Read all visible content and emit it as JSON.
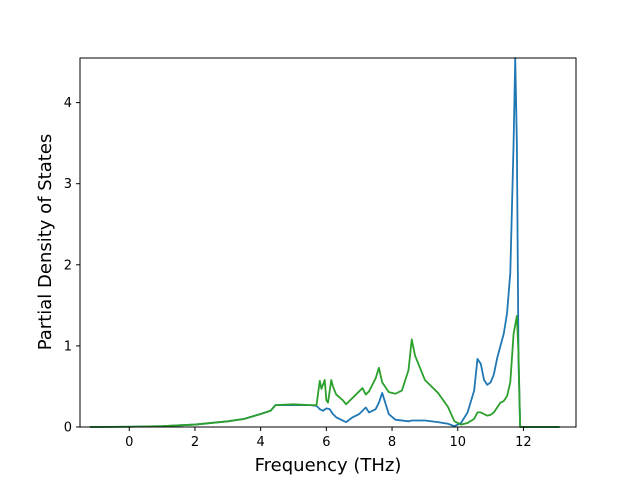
{
  "chart_data": {
    "type": "line",
    "title": "",
    "xlabel": "Frequency (THz)",
    "ylabel": "Partial Density of States",
    "xlim": [
      -1.5,
      13.6
    ],
    "ylim": [
      0,
      4.55
    ],
    "xticks": [
      0,
      2,
      4,
      6,
      8,
      10,
      12
    ],
    "yticks": [
      0,
      1,
      2,
      3,
      4
    ],
    "xtick_labels": [
      "0",
      "2",
      "4",
      "6",
      "8",
      "10",
      "12"
    ],
    "ytick_labels": [
      "0",
      "1",
      "2",
      "3",
      "4"
    ],
    "grid": false,
    "legend": false,
    "series": [
      {
        "color": "#1f77b4",
        "x": [
          -1.2,
          0,
          1,
          2,
          3,
          3.5,
          4,
          4.3,
          4.45,
          5,
          5.5,
          5.7,
          5.8,
          5.9,
          6.0,
          6.1,
          6.2,
          6.3,
          6.5,
          6.6,
          6.8,
          7.0,
          7.2,
          7.3,
          7.5,
          7.6,
          7.7,
          7.9,
          8.1,
          8.5,
          8.6,
          9.0,
          9.4,
          9.7,
          9.9,
          10.1,
          10.3,
          10.5,
          10.6,
          10.7,
          10.8,
          10.9,
          11.0,
          11.1,
          11.2,
          11.3,
          11.4,
          11.5,
          11.6,
          11.7,
          11.75,
          11.8,
          11.85,
          11.9,
          13.1
        ],
        "y": [
          0,
          0.003,
          0.01,
          0.03,
          0.07,
          0.1,
          0.16,
          0.2,
          0.27,
          0.27,
          0.27,
          0.26,
          0.22,
          0.2,
          0.23,
          0.22,
          0.16,
          0.12,
          0.08,
          0.06,
          0.12,
          0.16,
          0.24,
          0.18,
          0.22,
          0.3,
          0.42,
          0.16,
          0.09,
          0.07,
          0.08,
          0.08,
          0.06,
          0.04,
          0.01,
          0.05,
          0.18,
          0.45,
          0.84,
          0.78,
          0.58,
          0.52,
          0.55,
          0.65,
          0.85,
          1.0,
          1.15,
          1.4,
          1.9,
          3.5,
          4.55,
          3.5,
          0.8,
          0,
          0
        ]
      },
      {
        "color": "#2ca02c",
        "x": [
          -1.2,
          0,
          1,
          2,
          3,
          3.5,
          4,
          4.3,
          4.45,
          5,
          5.5,
          5.7,
          5.8,
          5.85,
          5.95,
          6.0,
          6.05,
          6.15,
          6.2,
          6.3,
          6.5,
          6.6,
          6.8,
          7.0,
          7.1,
          7.2,
          7.3,
          7.5,
          7.6,
          7.7,
          7.9,
          8.1,
          8.3,
          8.5,
          8.6,
          8.7,
          9.0,
          9.4,
          9.7,
          9.9,
          10.1,
          10.3,
          10.5,
          10.6,
          10.7,
          10.8,
          10.9,
          11.0,
          11.1,
          11.2,
          11.3,
          11.4,
          11.5,
          11.6,
          11.7,
          11.8,
          11.85,
          11.9,
          13.1
        ],
        "y": [
          0,
          0.003,
          0.01,
          0.03,
          0.07,
          0.1,
          0.16,
          0.2,
          0.27,
          0.28,
          0.27,
          0.27,
          0.57,
          0.47,
          0.58,
          0.33,
          0.3,
          0.58,
          0.5,
          0.4,
          0.33,
          0.28,
          0.36,
          0.44,
          0.48,
          0.4,
          0.44,
          0.6,
          0.73,
          0.55,
          0.43,
          0.41,
          0.45,
          0.7,
          1.08,
          0.88,
          0.58,
          0.42,
          0.25,
          0.07,
          0.03,
          0.05,
          0.1,
          0.18,
          0.18,
          0.16,
          0.14,
          0.15,
          0.18,
          0.24,
          0.3,
          0.32,
          0.38,
          0.55,
          1.15,
          1.37,
          0.9,
          0,
          0
        ]
      }
    ]
  }
}
